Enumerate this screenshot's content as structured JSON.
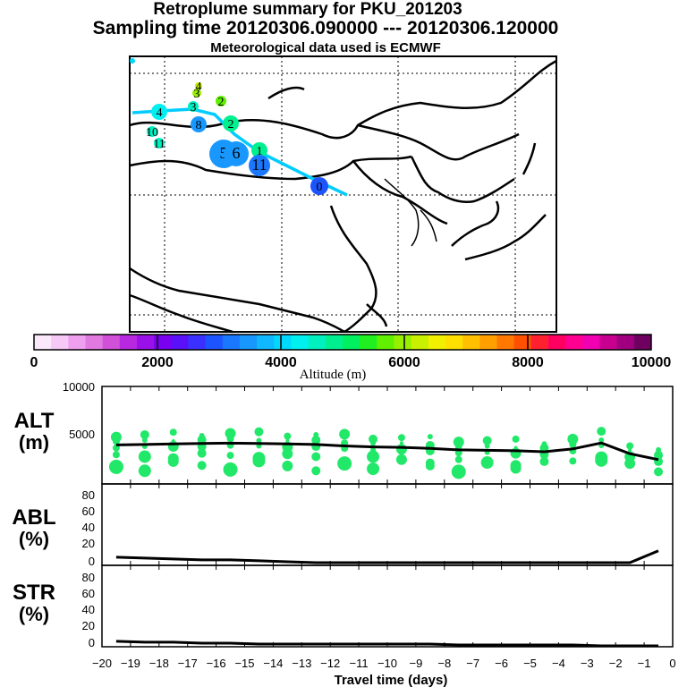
{
  "title": "Retroplume summary for PKU_201203",
  "sampling": "Sampling time   20120306.090000 --- 20120306.120000",
  "met": "Meteorological data used is ECMWF",
  "colorbar": {
    "label": "Altitude (m)",
    "ticks": [
      "0",
      "2000",
      "4000",
      "6000",
      "8000",
      "10000"
    ],
    "colors": [
      "#fbe8fb",
      "#f5c8f5",
      "#eea0ee",
      "#e07ae0",
      "#d050d8",
      "#b828e0",
      "#9a10e8",
      "#7a00f0",
      "#5a10f8",
      "#3a30ff",
      "#1c55ff",
      "#1a78ff",
      "#1898ff",
      "#10b8ff",
      "#00d8ff",
      "#00f0f0",
      "#00f0c0",
      "#00f090",
      "#00f060",
      "#20f020",
      "#60f000",
      "#98f000",
      "#c8f000",
      "#f0f000",
      "#ffe000",
      "#ffc000",
      "#ffa000",
      "#ff7800",
      "#ff5000",
      "#ff2030",
      "#ff0060",
      "#ff0090",
      "#f000b0",
      "#c80090",
      "#a00080",
      "#700060"
    ]
  },
  "map": {
    "plume_markers": [
      {
        "label": "4",
        "color": "#c8f000"
      },
      {
        "label": "3",
        "color": "#98f000"
      },
      {
        "label": "2",
        "color": "#60f000"
      },
      {
        "label": "3",
        "color": "#00f0c0"
      },
      {
        "label": "4",
        "color": "#00f0f0"
      },
      {
        "label": "8",
        "color": "#1898ff"
      },
      {
        "label": "2",
        "color": "#00f090"
      },
      {
        "label": "10",
        "color": "#00f0c0"
      },
      {
        "label": "11",
        "color": "#00f0c0"
      },
      {
        "label": "5",
        "color": "#1898ff"
      },
      {
        "label": "6",
        "color": "#1898ff"
      },
      {
        "label": "1",
        "color": "#00f090"
      },
      {
        "label": "11",
        "color": "#1a78ff"
      },
      {
        "label": "0",
        "color": "#1c55ff"
      }
    ]
  },
  "panels": {
    "alt": {
      "label1": "ALT",
      "label2": "(m)",
      "ticks": [
        "10000",
        "5000"
      ]
    },
    "abl": {
      "label1": "ABL",
      "label2": "(%)",
      "ticks": [
        "80",
        "60",
        "40",
        "20",
        "0"
      ]
    },
    "str": {
      "label1": "STR",
      "label2": "(%)",
      "ticks": [
        "80",
        "60",
        "40",
        "20",
        "0"
      ]
    }
  },
  "chart_data": [
    {
      "type": "line",
      "title": "ALT (m)",
      "x": [
        -19.5,
        -18.5,
        -17.5,
        -16.5,
        -15.5,
        -14.5,
        -13.5,
        -12.5,
        -11.5,
        -10.5,
        -9.5,
        -8.5,
        -7.5,
        -6.5,
        -5.5,
        -4.5,
        -3.5,
        -2.5,
        -1.5,
        -0.5
      ],
      "values": [
        4000,
        4050,
        4100,
        4150,
        4180,
        4150,
        4100,
        4050,
        3900,
        3800,
        3750,
        3650,
        3500,
        3450,
        3400,
        3300,
        3600,
        4200,
        3100,
        2500
      ],
      "ylim": [
        0,
        10000
      ],
      "xlim": [
        -20,
        0
      ],
      "xlabel": "Travel time (days)",
      "ylabel": "ALT (m)"
    },
    {
      "type": "line",
      "title": "ABL (%)",
      "x": [
        -19.5,
        -18.5,
        -17.5,
        -16.5,
        -15.5,
        -14.5,
        -13.5,
        -12.5,
        -11.5,
        -10.5,
        -9.5,
        -8.5,
        -7.5,
        -6.5,
        -5.5,
        -4.5,
        -3.5,
        -2.5,
        -1.5,
        -0.5
      ],
      "values": [
        9,
        8,
        7,
        6,
        6,
        5,
        4,
        3,
        3,
        3,
        3,
        3,
        3,
        3,
        3,
        3,
        3,
        3,
        3,
        16
      ],
      "ylim": [
        0,
        90
      ],
      "xlim": [
        -20,
        0
      ],
      "xlabel": "Travel time (days)",
      "ylabel": "ABL (%)"
    },
    {
      "type": "line",
      "title": "STR (%)",
      "x": [
        -19.5,
        -18.5,
        -17.5,
        -16.5,
        -15.5,
        -14.5,
        -13.5,
        -12.5,
        -11.5,
        -10.5,
        -9.5,
        -8.5,
        -7.5,
        -6.5,
        -5.5,
        -4.5,
        -3.5,
        -2.5,
        -1.5,
        -0.5
      ],
      "values": [
        6,
        5,
        5,
        4,
        4,
        3,
        3,
        3,
        3,
        3,
        3,
        3,
        2,
        2,
        2,
        2,
        2,
        1,
        1,
        1
      ],
      "ylim": [
        0,
        90
      ],
      "xlim": [
        -20,
        0
      ],
      "xlabel": "Travel time (days)",
      "ylabel": "STR (%)"
    }
  ],
  "xaxis": {
    "label": "Travel time (days)",
    "ticks": [
      "−20",
      "−19",
      "−18",
      "−17",
      "−16",
      "−15",
      "−14",
      "−13",
      "−12",
      "−11",
      "−10",
      "−9",
      "−8",
      "−7",
      "−6",
      "−5",
      "−4",
      "−3",
      "−2",
      "−1",
      "0"
    ]
  }
}
